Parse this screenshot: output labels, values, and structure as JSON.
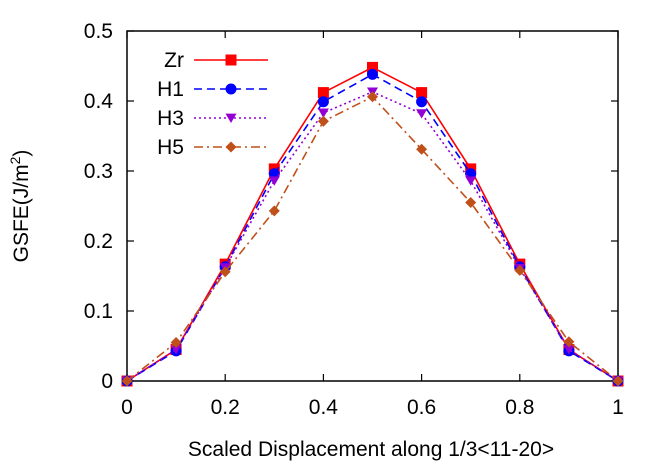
{
  "chart_data": {
    "type": "line",
    "title": "",
    "xlabel": "Scaled Displacement along 1/3<11-20>",
    "ylabel": {
      "main": "GSFE(J/m",
      "sup": "2",
      "close": ")"
    },
    "xlim": [
      0,
      1
    ],
    "ylim": [
      0,
      0.5
    ],
    "x_ticks": [
      0,
      0.2,
      0.4,
      0.6,
      0.8,
      1
    ],
    "x_tick_labels": [
      "0",
      "0.2",
      "0.4",
      "0.6",
      "0.8",
      "1"
    ],
    "y_ticks": [
      0,
      0.1,
      0.2,
      0.3,
      0.4,
      0.5
    ],
    "y_tick_labels": [
      "0",
      "0.1",
      "0.2",
      "0.3",
      "0.4",
      "0.5"
    ],
    "grid": false,
    "legend_position": "top-left",
    "x": [
      0,
      0.1,
      0.2,
      0.3,
      0.4,
      0.5,
      0.6,
      0.7,
      0.8,
      0.9,
      1.0
    ],
    "series": [
      {
        "name": "Zr",
        "color": "#ff0000",
        "dash": "solid",
        "marker": "square",
        "values": [
          0,
          0.045,
          0.167,
          0.303,
          0.412,
          0.448,
          0.412,
          0.303,
          0.167,
          0.045,
          0
        ]
      },
      {
        "name": "H1",
        "color": "#0000ff",
        "dash": "dashed",
        "marker": "circle",
        "values": [
          0,
          0.043,
          0.163,
          0.296,
          0.399,
          0.438,
          0.399,
          0.296,
          0.163,
          0.043,
          0
        ]
      },
      {
        "name": "H3",
        "color": "#9400d3",
        "dash": "dotted",
        "marker": "triangle-down",
        "values": [
          0,
          0.045,
          0.162,
          0.286,
          0.383,
          0.413,
          0.382,
          0.286,
          0.161,
          0.045,
          0
        ]
      },
      {
        "name": "H5",
        "color": "#c0501a",
        "dash": "dash-dot",
        "marker": "diamond",
        "values": [
          0,
          0.055,
          0.156,
          0.243,
          0.371,
          0.406,
          0.331,
          0.255,
          0.158,
          0.056,
          0
        ]
      }
    ]
  }
}
